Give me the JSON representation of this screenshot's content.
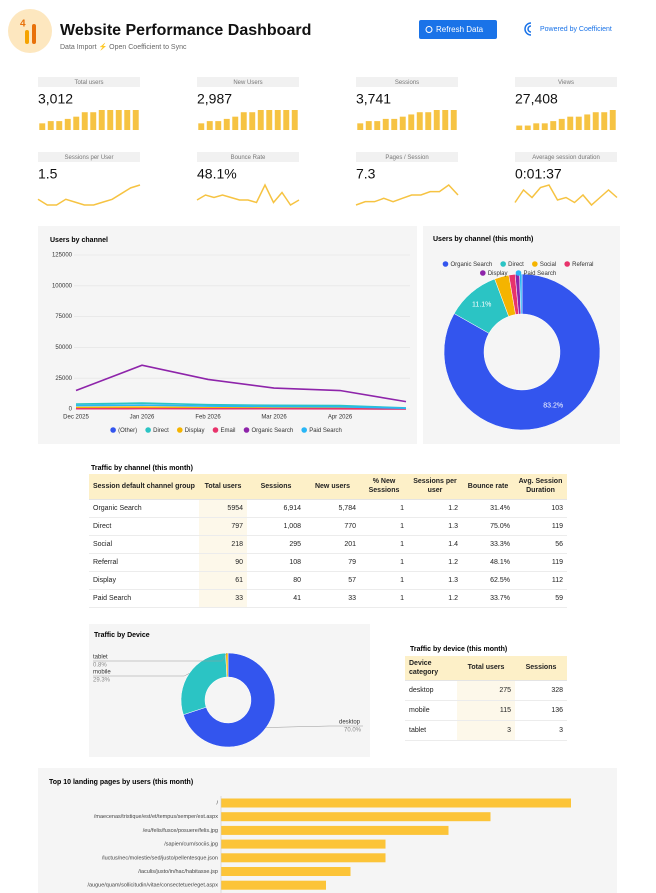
{
  "header": {
    "logo_text": "4",
    "title": "Website Performance Dashboard",
    "subtitle": "Data Import ⚡ Open Coefficient to Sync",
    "button": "Refresh Data",
    "powered": "Powered by Coefficient"
  },
  "kpis": [
    {
      "label": "Total users",
      "value": "3,012",
      "type": "bar",
      "color": "#f6c342",
      "values": [
        3,
        4,
        4,
        5,
        6,
        8,
        8,
        9,
        9,
        9,
        9,
        9
      ]
    },
    {
      "label": "New Users",
      "value": "2,987",
      "type": "bar",
      "color": "#f6c342",
      "values": [
        3,
        4,
        4,
        5,
        6,
        8,
        8,
        9,
        9,
        9,
        9,
        9
      ]
    },
    {
      "label": "Sessions",
      "value": "3,741",
      "type": "bar",
      "color": "#f6c342",
      "values": [
        3,
        4,
        4,
        5,
        5,
        6,
        7,
        8,
        8,
        9,
        9,
        9
      ]
    },
    {
      "label": "Views",
      "value": "27,408",
      "type": "bar",
      "color": "#f6c342",
      "values": [
        2,
        2,
        3,
        3,
        4,
        5,
        6,
        6,
        7,
        8,
        8,
        9
      ]
    },
    {
      "label": "Sessions per User",
      "value": "1.5",
      "type": "line",
      "color": "#f6c342",
      "values": [
        5,
        3,
        3,
        5,
        4,
        3,
        3,
        4,
        5,
        7,
        9,
        10
      ]
    },
    {
      "label": "Bounce Rate",
      "value": "48.1%",
      "type": "line",
      "color": "#f6c342",
      "values": [
        4,
        6,
        5,
        6,
        5,
        4,
        4,
        3,
        10,
        3,
        7,
        2,
        4
      ]
    },
    {
      "label": "Pages / Session",
      "value": "7.3",
      "type": "line",
      "color": "#f6c342",
      "values": [
        2,
        3,
        3,
        4,
        3,
        4,
        5,
        5,
        6,
        6,
        8,
        5
      ]
    },
    {
      "label": "Average session duration",
      "value": "0:01:37",
      "type": "line",
      "color": "#f6c342",
      "values": [
        3,
        8,
        5,
        9,
        10,
        4,
        5,
        3,
        6,
        2,
        5,
        8,
        5
      ]
    }
  ],
  "chart_data": [
    {
      "type": "line",
      "title": "Users by channel",
      "categories": [
        "Dec 2025",
        "Jan 2026",
        "Feb 2026",
        "Mar 2026",
        "Apr 2026",
        null
      ],
      "ylim": [
        0,
        125000
      ],
      "yticks": [
        0,
        25000,
        50000,
        75000,
        100000,
        125000
      ],
      "grid": true,
      "series": [
        {
          "name": "(Other)",
          "color": "#3355ee",
          "values": [
            500,
            800,
            600,
            400,
            300,
            100
          ]
        },
        {
          "name": "Direct",
          "color": "#2bc4c4",
          "values": [
            4000,
            4800,
            3500,
            3000,
            2800,
            900
          ]
        },
        {
          "name": "Display",
          "color": "#f5b400",
          "values": [
            1200,
            1500,
            1100,
            900,
            800,
            300
          ]
        },
        {
          "name": "Email",
          "color": "#e8336b",
          "values": [
            200,
            300,
            200,
            200,
            150,
            50
          ]
        },
        {
          "name": "Organic Search",
          "color": "#8e24aa",
          "values": [
            15000,
            35500,
            24000,
            17000,
            15000,
            6000
          ]
        },
        {
          "name": "Paid Search",
          "color": "#29b6f6",
          "values": [
            2800,
            3200,
            2400,
            2000,
            1800,
            600
          ]
        }
      ]
    },
    {
      "type": "pie",
      "title": "Users by channel (this month)",
      "categories": [
        "Organic Search",
        "Direct",
        "Social",
        "Referral",
        "Display",
        "Paid Search"
      ],
      "values": [
        83.2,
        11.1,
        3.0,
        1.3,
        0.9,
        0.5
      ],
      "value_labels": [
        "83.2%",
        "11.1%",
        null,
        null,
        null,
        null
      ],
      "colors": [
        "#3355ee",
        "#2bc4c4",
        "#f5b400",
        "#e8336b",
        "#8e24aa",
        "#29b6f6"
      ]
    },
    {
      "type": "pie",
      "title": "Traffic by Device",
      "categories": [
        "desktop",
        "mobile",
        "tablet"
      ],
      "values": [
        70.0,
        29.3,
        0.8
      ],
      "value_labels": [
        "70.0%",
        "29.3%",
        "0.8%"
      ],
      "colors": [
        "#3355ee",
        "#2bc4c4",
        "#f5b400"
      ]
    },
    {
      "type": "barh",
      "title": "Top 10 landing pages by users (this month)",
      "categories": [
        "/",
        "/maecenas/tristique/est/et/tempus/semper/est.aspx",
        "/eu/felis/fusce/posuere/felis.jpg",
        "/sapien/cum/sociis.jpg",
        "/luctus/nec/molestie/sed/justo/pellentesque.json",
        "/iaculis/justo/in/hac/habitasse.jsp",
        "/augue/quam/sollicitudin/vitae/consectetuer/eget.aspx"
      ],
      "values": [
        100,
        77,
        65,
        47,
        47,
        37,
        30
      ],
      "color": "#fcc438"
    }
  ],
  "channel_table": {
    "title": "Traffic by channel (this month)",
    "header": [
      "Session default channel group",
      "Total users",
      "Sessions",
      "New users",
      "% New Sessions",
      "Sessions per user",
      "Bounce rate",
      "Avg. Session Duration"
    ],
    "rows": [
      [
        "Organic Search",
        "5954",
        "6,914",
        "5,784",
        "1",
        "1.2",
        "31.4%",
        "103"
      ],
      [
        "Direct",
        "797",
        "1,008",
        "770",
        "1",
        "1.3",
        "75.0%",
        "119"
      ],
      [
        "Social",
        "218",
        "295",
        "201",
        "1",
        "1.4",
        "33.3%",
        "56"
      ],
      [
        "Referral",
        "90",
        "108",
        "79",
        "1",
        "1.2",
        "48.1%",
        "119"
      ],
      [
        "Display",
        "61",
        "80",
        "57",
        "1",
        "1.3",
        "62.5%",
        "112"
      ],
      [
        "Paid Search",
        "33",
        "41",
        "33",
        "1",
        "1.2",
        "33.7%",
        "59"
      ]
    ]
  },
  "device_table": {
    "title": "Traffic by device (this month)",
    "header": [
      "Device category",
      "Total users",
      "Sessions"
    ],
    "rows": [
      [
        "desktop",
        "275",
        "328"
      ],
      [
        "mobile",
        "115",
        "136"
      ],
      [
        "tablet",
        "3",
        "3"
      ]
    ]
  }
}
